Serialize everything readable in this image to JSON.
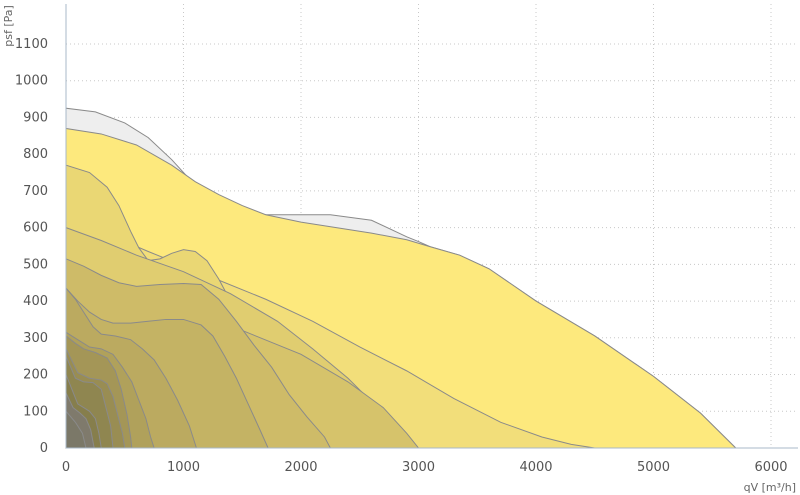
{
  "chart_data": {
    "type": "area",
    "xlabel": "qV [m³/h]",
    "ylabel": "psf [Pa]",
    "xlim": [
      0,
      6300
    ],
    "ylim": [
      0,
      1100
    ],
    "x_ticks": [
      0,
      1000,
      2000,
      3000,
      4000,
      5000,
      6000
    ],
    "y_ticks": [
      0,
      100,
      200,
      300,
      400,
      500,
      600,
      700,
      800,
      900,
      1000,
      1100
    ],
    "x_tick_labels": [
      "0",
      "1000",
      "2000",
      "3000",
      "4000",
      "5000",
      "6000"
    ],
    "y_tick_labels": [
      "0",
      "100",
      "200",
      "300",
      "400",
      "500",
      "600",
      "700",
      "800",
      "900",
      "1000",
      "1100"
    ],
    "grid": true,
    "series": [
      {
        "color": "#eeeeee",
        "points": [
          [
            0,
            925
          ],
          [
            250,
            915
          ],
          [
            500,
            885
          ],
          [
            700,
            845
          ],
          [
            900,
            785
          ],
          [
            1100,
            715
          ],
          [
            1250,
            680
          ],
          [
            1450,
            655
          ],
          [
            1650,
            635
          ],
          [
            1900,
            635
          ],
          [
            2250,
            635
          ],
          [
            2600,
            620
          ],
          [
            2900,
            575
          ],
          [
            3000,
            562
          ],
          [
            3100,
            548
          ],
          [
            3350,
            525
          ],
          [
            3600,
            488
          ],
          [
            4000,
            400
          ],
          [
            4500,
            305
          ],
          [
            5000,
            195
          ],
          [
            5400,
            95
          ],
          [
            5700,
            0
          ]
        ]
      },
      {
        "color": "#fde97d",
        "points": [
          [
            0,
            870
          ],
          [
            300,
            855
          ],
          [
            600,
            825
          ],
          [
            900,
            770
          ],
          [
            1100,
            725
          ],
          [
            1300,
            690
          ],
          [
            1500,
            660
          ],
          [
            1700,
            635
          ],
          [
            2000,
            615
          ],
          [
            2300,
            600
          ],
          [
            2600,
            585
          ],
          [
            2900,
            567
          ],
          [
            3100,
            548
          ],
          [
            3350,
            525
          ],
          [
            3600,
            488
          ],
          [
            4000,
            400
          ],
          [
            4500,
            305
          ],
          [
            5000,
            195
          ],
          [
            5400,
            95
          ],
          [
            5700,
            0
          ]
        ]
      },
      {
        "color": "#f2de7a",
        "points": [
          [
            0,
            620
          ],
          [
            300,
            590
          ],
          [
            700,
            535
          ],
          [
            1200,
            470
          ],
          [
            1700,
            405
          ],
          [
            2100,
            345
          ],
          [
            2500,
            275
          ],
          [
            2900,
            210
          ],
          [
            3300,
            135
          ],
          [
            3700,
            70
          ],
          [
            4050,
            30
          ],
          [
            4300,
            10
          ],
          [
            4500,
            0
          ]
        ]
      },
      {
        "color": "#ead774",
        "points": [
          [
            0,
            770
          ],
          [
            200,
            750
          ],
          [
            350,
            710
          ],
          [
            450,
            660
          ],
          [
            550,
            590
          ],
          [
            620,
            545
          ],
          [
            700,
            510
          ],
          [
            800,
            515
          ],
          [
            900,
            530
          ],
          [
            1000,
            540
          ],
          [
            1100,
            535
          ],
          [
            1200,
            510
          ],
          [
            1300,
            460
          ],
          [
            1400,
            400
          ],
          [
            1500,
            330
          ],
          [
            1600,
            260
          ],
          [
            1700,
            190
          ],
          [
            1800,
            110
          ],
          [
            1880,
            50
          ],
          [
            1930,
            0
          ]
        ]
      },
      {
        "color": "#e0cd70",
        "points": [
          [
            0,
            600
          ],
          [
            300,
            565
          ],
          [
            600,
            525
          ],
          [
            1000,
            480
          ],
          [
            1400,
            420
          ],
          [
            1800,
            345
          ],
          [
            2100,
            270
          ],
          [
            2400,
            190
          ],
          [
            2650,
            110
          ],
          [
            2800,
            50
          ],
          [
            2900,
            0
          ]
        ]
      },
      {
        "color": "#d6c36b",
        "points": [
          [
            0,
            455
          ],
          [
            500,
            420
          ],
          [
            1000,
            370
          ],
          [
            1500,
            320
          ],
          [
            2000,
            255
          ],
          [
            2400,
            180
          ],
          [
            2700,
            110
          ],
          [
            2900,
            40
          ],
          [
            3000,
            0
          ]
        ]
      },
      {
        "color": "#cebb68",
        "points": [
          [
            0,
            515
          ],
          [
            150,
            495
          ],
          [
            300,
            470
          ],
          [
            450,
            450
          ],
          [
            600,
            440
          ],
          [
            800,
            445
          ],
          [
            1000,
            448
          ],
          [
            1150,
            445
          ],
          [
            1300,
            405
          ],
          [
            1450,
            345
          ],
          [
            1600,
            280
          ],
          [
            1750,
            220
          ],
          [
            1900,
            145
          ],
          [
            2050,
            85
          ],
          [
            2200,
            30
          ],
          [
            2250,
            0
          ]
        ]
      },
      {
        "color": "#c4b364",
        "points": [
          [
            0,
            435
          ],
          [
            100,
            400
          ],
          [
            200,
            370
          ],
          [
            300,
            350
          ],
          [
            400,
            340
          ],
          [
            550,
            340
          ],
          [
            700,
            345
          ],
          [
            850,
            350
          ],
          [
            1000,
            350
          ],
          [
            1150,
            335
          ],
          [
            1250,
            305
          ],
          [
            1350,
            250
          ],
          [
            1450,
            190
          ],
          [
            1550,
            120
          ],
          [
            1650,
            50
          ],
          [
            1720,
            0
          ]
        ]
      },
      {
        "color": "#bbaa60",
        "points": [
          [
            0,
            435
          ],
          [
            80,
            405
          ],
          [
            150,
            370
          ],
          [
            230,
            330
          ],
          [
            300,
            310
          ],
          [
            420,
            305
          ],
          [
            550,
            295
          ],
          [
            650,
            270
          ],
          [
            750,
            240
          ],
          [
            850,
            190
          ],
          [
            950,
            130
          ],
          [
            1050,
            60
          ],
          [
            1110,
            0
          ]
        ]
      },
      {
        "color": "#b0a15b",
        "points": [
          [
            0,
            315
          ],
          [
            100,
            295
          ],
          [
            200,
            275
          ],
          [
            300,
            270
          ],
          [
            400,
            255
          ],
          [
            480,
            220
          ],
          [
            560,
            180
          ],
          [
            620,
            130
          ],
          [
            680,
            80
          ],
          [
            720,
            30
          ],
          [
            750,
            0
          ]
        ]
      },
      {
        "color": "#a49657",
        "points": [
          [
            0,
            305
          ],
          [
            80,
            285
          ],
          [
            150,
            270
          ],
          [
            250,
            260
          ],
          [
            350,
            245
          ],
          [
            420,
            210
          ],
          [
            470,
            160
          ],
          [
            520,
            90
          ],
          [
            550,
            30
          ],
          [
            560,
            0
          ]
        ]
      },
      {
        "color": "#998d53",
        "points": [
          [
            0,
            270
          ],
          [
            100,
            205
          ],
          [
            200,
            190
          ],
          [
            300,
            185
          ],
          [
            350,
            175
          ],
          [
            400,
            140
          ],
          [
            440,
            90
          ],
          [
            480,
            40
          ],
          [
            500,
            0
          ]
        ]
      },
      {
        "color": "#8f8650",
        "points": [
          [
            0,
            250
          ],
          [
            80,
            190
          ],
          [
            150,
            180
          ],
          [
            230,
            178
          ],
          [
            300,
            160
          ],
          [
            340,
            110
          ],
          [
            380,
            60
          ],
          [
            400,
            0
          ]
        ]
      },
      {
        "color": "#867e4c",
        "points": [
          [
            0,
            200
          ],
          [
            100,
            120
          ],
          [
            150,
            110
          ],
          [
            200,
            100
          ],
          [
            250,
            80
          ],
          [
            280,
            40
          ],
          [
            300,
            0
          ]
        ]
      },
      {
        "color": "#7f7a6c",
        "points": [
          [
            0,
            150
          ],
          [
            60,
            110
          ],
          [
            120,
            95
          ],
          [
            170,
            80
          ],
          [
            210,
            50
          ],
          [
            240,
            0
          ]
        ]
      },
      {
        "color": "#7b7868",
        "points": [
          [
            0,
            100
          ],
          [
            80,
            70
          ],
          [
            140,
            40
          ],
          [
            170,
            0
          ]
        ]
      }
    ]
  }
}
